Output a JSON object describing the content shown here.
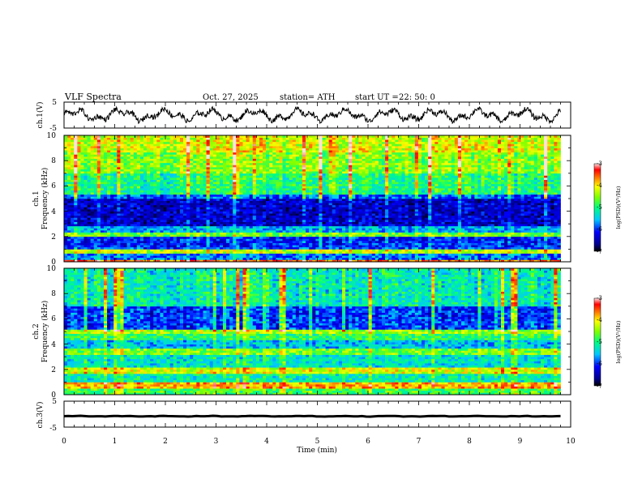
{
  "header": {
    "title": "VLF  Spectra",
    "date": "Oct. 27, 2025",
    "station": "station= ATH",
    "start_label": "start  UT  =",
    "start_time": "22: 50: 0"
  },
  "chart_data": [
    {
      "type": "line",
      "id": "ch1-waveform",
      "ylabel": "ch.1(V)",
      "ylim": [
        -5,
        5
      ],
      "yticks": [
        "5",
        "-5"
      ],
      "xlim": [
        0,
        10
      ],
      "data_end_min": 9.8,
      "mean": 0.0,
      "amplitude": 2.5,
      "color": "#000000"
    },
    {
      "type": "heatmap",
      "id": "ch1-spectrogram",
      "ylabel_line1": "ch.1",
      "ylabel_line2": "Frequency  (kHz)",
      "ylim": [
        0,
        10
      ],
      "yticks": [
        "0",
        "2",
        "4",
        "6",
        "8",
        "10"
      ],
      "xlim": [
        0,
        10
      ],
      "data_end_min": 9.8,
      "colorbar": {
        "ticks": [
          "-3",
          "-4",
          "-5",
          "-6",
          "-7"
        ],
        "label": "log(PSD)(V²/Hz)",
        "range": [
          -7,
          -3
        ]
      },
      "bands": [
        {
          "f": [
            0.0,
            0.25
          ],
          "level": -3.6
        },
        {
          "f": [
            0.25,
            0.6
          ],
          "level": -5.8
        },
        {
          "f": [
            0.6,
            1.0
          ],
          "level": -4.3
        },
        {
          "f": [
            1.0,
            1.25
          ],
          "level": -6.0
        },
        {
          "f": [
            1.25,
            2.0
          ],
          "level": -6.1
        },
        {
          "f": [
            2.0,
            2.3
          ],
          "level": -4.6
        },
        {
          "f": [
            2.3,
            2.8
          ],
          "level": -5.6
        },
        {
          "f": [
            2.8,
            5.0
          ],
          "level": -6.4
        },
        {
          "f": [
            5.0,
            5.4
          ],
          "level": -5.9
        },
        {
          "f": [
            5.4,
            7.0
          ],
          "level": -5.0
        },
        {
          "f": [
            7.0,
            8.7
          ],
          "level": -4.5
        },
        {
          "f": [
            8.7,
            10.0
          ],
          "level": -4.2
        }
      ]
    },
    {
      "type": "heatmap",
      "id": "ch2-spectrogram",
      "ylabel_line1": "ch.2",
      "ylabel_line2": "Frequency  (kHz)",
      "ylim": [
        0,
        10
      ],
      "yticks": [
        "0",
        "2",
        "4",
        "6",
        "8",
        "10"
      ],
      "xlim": [
        0,
        10
      ],
      "data_end_min": 9.8,
      "colorbar": {
        "ticks": [
          "-3",
          "-4",
          "-5",
          "-6",
          "-7"
        ],
        "label": "log(PSD)(V²/Hz)",
        "range": [
          -7,
          -3
        ]
      },
      "bands": [
        {
          "f": [
            0.0,
            0.5
          ],
          "level": -4.8
        },
        {
          "f": [
            0.5,
            1.0
          ],
          "level": -3.8
        },
        {
          "f": [
            1.0,
            1.6
          ],
          "level": -5.2
        },
        {
          "f": [
            1.6,
            2.1
          ],
          "level": -4.2
        },
        {
          "f": [
            2.1,
            3.1
          ],
          "level": -5.3
        },
        {
          "f": [
            3.1,
            3.7
          ],
          "level": -4.6
        },
        {
          "f": [
            3.7,
            4.4
          ],
          "level": -5.5
        },
        {
          "f": [
            4.4,
            4.8
          ],
          "level": -4.9
        },
        {
          "f": [
            4.8,
            5.2
          ],
          "level": -4.4
        },
        {
          "f": [
            5.2,
            7.0
          ],
          "level": -6.0
        },
        {
          "f": [
            7.0,
            10.0
          ],
          "level": -5.2
        }
      ]
    },
    {
      "type": "line",
      "id": "ch3-waveform",
      "ylabel": "ch.3(V)",
      "ylim": [
        -5,
        5
      ],
      "yticks": [
        "5",
        "-5"
      ],
      "xlim": [
        0,
        10
      ],
      "data_end_min": 9.8,
      "mean": -0.8,
      "amplitude": 0.15,
      "color": "#000000"
    }
  ],
  "xaxis": {
    "label": "Time  (min)",
    "ticks": [
      "0",
      "1",
      "2",
      "3",
      "4",
      "5",
      "6",
      "7",
      "8",
      "9",
      "10"
    ]
  }
}
